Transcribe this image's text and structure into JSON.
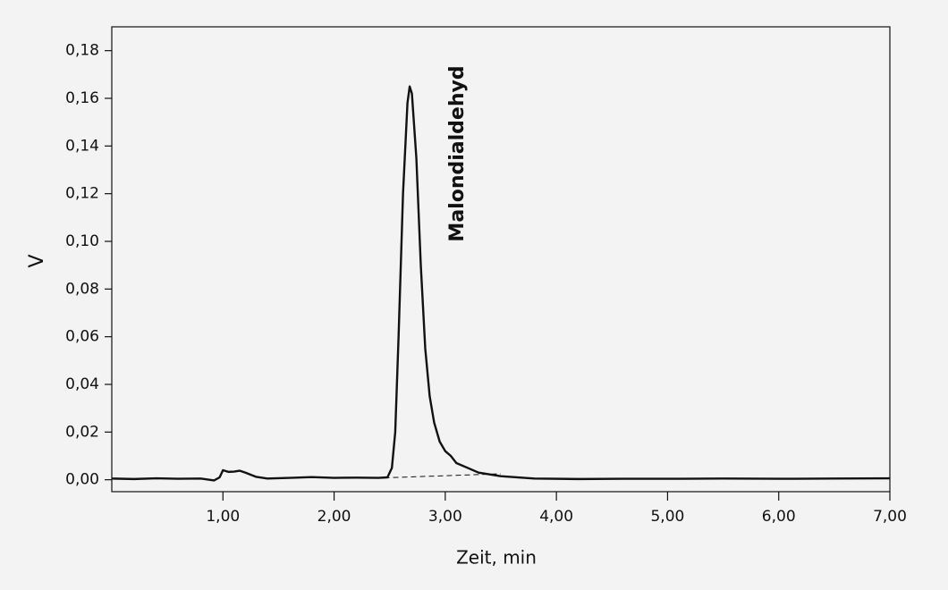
{
  "chart_data": {
    "type": "line",
    "xlabel": "Zeit, min",
    "ylabel": "V",
    "annotation": "Malondialdehyd",
    "xlim": [
      0,
      7
    ],
    "ylim": [
      -0.005,
      0.19
    ],
    "xticks": [
      {
        "value": 1,
        "label": "1,00"
      },
      {
        "value": 2,
        "label": "2,00"
      },
      {
        "value": 3,
        "label": "3,00"
      },
      {
        "value": 4,
        "label": "4,00"
      },
      {
        "value": 5,
        "label": "5,00"
      },
      {
        "value": 6,
        "label": "6,00"
      },
      {
        "value": 7,
        "label": "7,00"
      }
    ],
    "yticks": [
      {
        "value": 0,
        "label": "0,00"
      },
      {
        "value": 0.02,
        "label": "0,02"
      },
      {
        "value": 0.04,
        "label": "0,04"
      },
      {
        "value": 0.06,
        "label": "0,06"
      },
      {
        "value": 0.08,
        "label": "0,08"
      },
      {
        "value": 0.1,
        "label": "0,10"
      },
      {
        "value": 0.12,
        "label": "0,12"
      },
      {
        "value": 0.14,
        "label": "0,14"
      },
      {
        "value": 0.16,
        "label": "0,16"
      },
      {
        "value": 0.18,
        "label": "0,18"
      }
    ],
    "series": [
      {
        "color": "#111111",
        "dash": false,
        "x": [
          0,
          0.2,
          0.4,
          0.6,
          0.8,
          0.92,
          0.97,
          1.0,
          1.05,
          1.1,
          1.15,
          1.2,
          1.3,
          1.4,
          1.6,
          1.8,
          2.0,
          2.2,
          2.4,
          2.48,
          2.52,
          2.55,
          2.58,
          2.62,
          2.66,
          2.68,
          2.7,
          2.74,
          2.78,
          2.82,
          2.86,
          2.9,
          2.95,
          3.0,
          3.05,
          3.1,
          3.2,
          3.3,
          3.5,
          3.8,
          4.2,
          4.6,
          5.0,
          5.5,
          6.0,
          6.5,
          7.0
        ],
        "values": [
          0.0005,
          0.0003,
          0.0006,
          0.0004,
          0.0005,
          -0.0003,
          0.001,
          0.004,
          0.0033,
          0.0034,
          0.0038,
          0.003,
          0.0012,
          0.0005,
          0.0008,
          0.0011,
          0.0008,
          0.0009,
          0.0008,
          0.001,
          0.005,
          0.02,
          0.06,
          0.12,
          0.158,
          0.165,
          0.162,
          0.135,
          0.09,
          0.055,
          0.035,
          0.024,
          0.016,
          0.012,
          0.01,
          0.007,
          0.005,
          0.003,
          0.0015,
          0.0005,
          0.0003,
          0.0004,
          0.0004,
          0.0005,
          0.0004,
          0.0005,
          0.0006
        ]
      },
      {
        "color": "#111111",
        "dash": true,
        "x": [
          2.45,
          3.5
        ],
        "values": [
          0.0008,
          0.0025
        ]
      }
    ]
  }
}
